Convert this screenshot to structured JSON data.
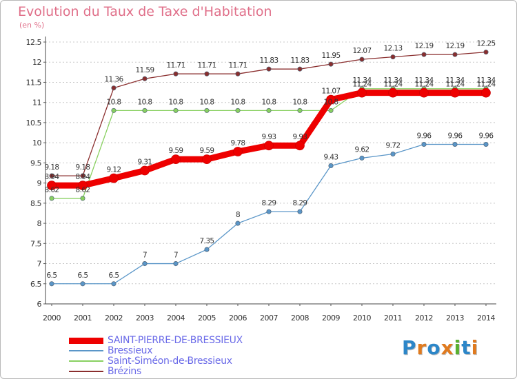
{
  "title": "Evolution du Taux de Taxe d'Habitation",
  "subtitle": "(en %)",
  "logo": {
    "text": "Proxiti",
    "colors": [
      "#2c86c8",
      "#e07a1e",
      "#2c86c8",
      "#e07a1e",
      "#58b030",
      "#2c86c8",
      "#e07a1e"
    ]
  },
  "chart_data": {
    "type": "line",
    "x": [
      "2000",
      "2001",
      "2002",
      "2003",
      "2004",
      "2005",
      "2006",
      "2007",
      "2008",
      "2009",
      "2010",
      "2011",
      "2012",
      "2013",
      "2014"
    ],
    "ylim": [
      6,
      12.5
    ],
    "yticks": [
      "6",
      "6.5",
      "7",
      "7.5",
      "8",
      "8.5",
      "9",
      "9.5",
      "10",
      "10.5",
      "11",
      "11.5",
      "12",
      "12.5"
    ],
    "grid": "horizontal dashed",
    "legend_position": "bottom-left",
    "series": [
      {
        "name": "SAINT-PIERRE-DE-BRESSIEUX",
        "color": "#ee0000",
        "width": 9,
        "values": [
          8.94,
          8.94,
          9.12,
          9.31,
          9.59,
          9.59,
          9.78,
          9.93,
          9.93,
          11.07,
          11.24,
          11.24,
          11.24,
          11.24,
          11.24
        ],
        "labels": [
          "8.94",
          "8.94",
          "9.12",
          "9.31",
          "9.59",
          "9.59",
          "9.78",
          "9.93",
          "9.93",
          "11.07",
          "11.24",
          "11.24",
          "11.24",
          "11.24",
          "11.24"
        ]
      },
      {
        "name": "Bressieux",
        "color": "#5a96c8",
        "width": 1.3,
        "values": [
          6.5,
          6.5,
          6.5,
          7,
          7,
          7.35,
          8,
          8.29,
          8.29,
          9.43,
          9.62,
          9.72,
          9.96,
          9.96,
          9.96
        ],
        "labels": [
          "6.5",
          "6.5",
          "6.5",
          "7",
          "7",
          "7.35",
          "8",
          "8.29",
          "8.29",
          "9.43",
          "9.62",
          "9.72",
          "9.96",
          "9.96",
          "9.96"
        ]
      },
      {
        "name": "Saint-Siméon-de-Bressieux",
        "color": "#88d060",
        "width": 1.3,
        "values": [
          8.62,
          8.62,
          10.8,
          10.8,
          10.8,
          10.8,
          10.8,
          10.8,
          10.8,
          10.8,
          11.34,
          11.34,
          11.34,
          11.34,
          11.34
        ],
        "labels": [
          "8.62",
          "8.62",
          "10.8",
          "10.8",
          "10.8",
          "10.8",
          "10.8",
          "10.8",
          "10.8",
          "10.8",
          "11.34",
          "11.34",
          "11.34",
          "11.34",
          "11.34"
        ]
      },
      {
        "name": "Brézins",
        "color": "#8a2e2e",
        "width": 1.3,
        "values": [
          9.18,
          9.18,
          11.36,
          11.59,
          11.71,
          11.71,
          11.71,
          11.83,
          11.83,
          11.95,
          12.07,
          12.13,
          12.19,
          12.19,
          12.25
        ],
        "labels": [
          "9.18",
          "9.18",
          "11.36",
          "11.59",
          "11.71",
          "11.71",
          "11.71",
          "11.83",
          "11.83",
          "11.95",
          "12.07",
          "12.13",
          "12.19",
          "12.19",
          "12.25"
        ]
      }
    ]
  }
}
